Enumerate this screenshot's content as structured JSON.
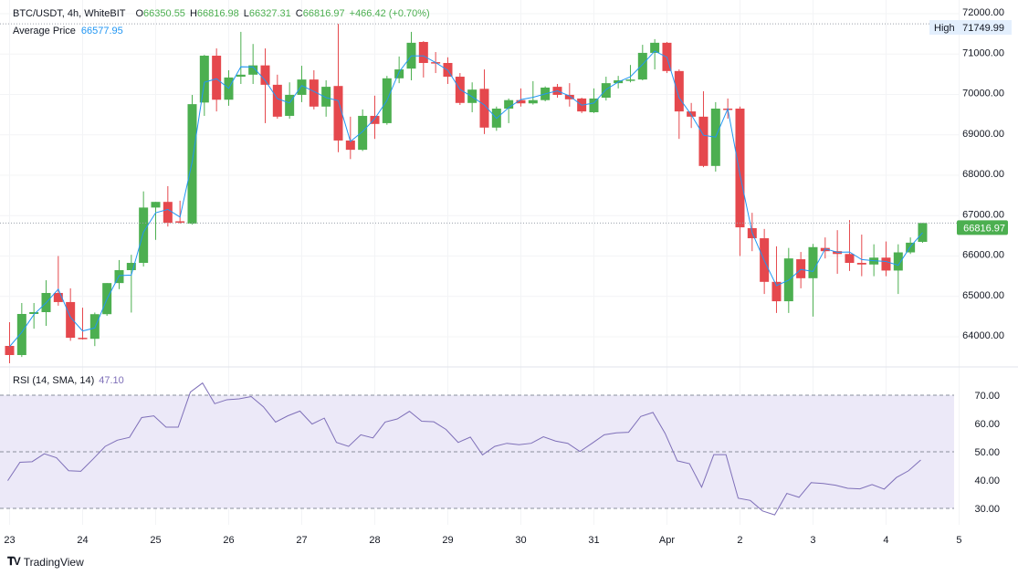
{
  "legend": {
    "symbol": "BTC/USDT, 4h, WhiteBIT",
    "o_key": "O",
    "o_val": "66350.55",
    "h_key": "H",
    "h_val": "66816.98",
    "l_key": "L",
    "l_val": "66327.31",
    "c_key": "C",
    "c_val": "66816.97",
    "change": "+466.42 (+0.70%)",
    "avg_label": "Average Price",
    "avg_val": "66577.95"
  },
  "rsi_legend": {
    "label": "RSI (14, SMA, 14)",
    "value": "47.10"
  },
  "high_marker": {
    "label": "High",
    "value": "71749.99"
  },
  "last_price_label": "66816.97",
  "branding": "TradingView",
  "colors": {
    "up": "#4caf50",
    "down": "#e5484d",
    "avg": "#2196f3",
    "rsi": "#7e6fb8",
    "rsi_band": "#ece9f8"
  },
  "chart_data": {
    "type": "candlestick",
    "title": "BTC/USDT, 4h, WhiteBIT",
    "price_ticks": [
      "72000.00",
      "71000.00",
      "70000.00",
      "69000.00",
      "68000.00",
      "67000.00",
      "66000.00",
      "65000.00",
      "64000.00"
    ],
    "price_tick_values": [
      72000,
      71000,
      70000,
      69000,
      68000,
      67000,
      66000,
      65000,
      64000
    ],
    "time_labels": [
      "23",
      "24",
      "25",
      "26",
      "27",
      "28",
      "29",
      "30",
      "31",
      "Apr",
      "2",
      "3",
      "4",
      "5"
    ],
    "candles_per_day": 6,
    "ohlc": [
      [
        63774,
        64362,
        63345,
        63548
      ],
      [
        63548,
        64836,
        63500,
        64565
      ],
      [
        64565,
        64836,
        64200,
        64610
      ],
      [
        64610,
        65400,
        64270,
        65085
      ],
      [
        65085,
        66000,
        64770,
        64860
      ],
      [
        64860,
        65200,
        63900,
        63975
      ],
      [
        63975,
        64720,
        63930,
        63950
      ],
      [
        63950,
        64600,
        63770,
        64560
      ],
      [
        64560,
        65330,
        64520,
        65330
      ],
      [
        65330,
        65900,
        65180,
        65650
      ],
      [
        65650,
        66030,
        64600,
        65830
      ],
      [
        65830,
        67600,
        65740,
        67200
      ],
      [
        67200,
        67340,
        66400,
        67340
      ],
      [
        67340,
        67730,
        66730,
        66820
      ],
      [
        66860,
        67370,
        66800,
        66830
      ],
      [
        66800,
        69990,
        66780,
        69760
      ],
      [
        69800,
        70980,
        69470,
        70960
      ],
      [
        70960,
        71140,
        69580,
        69870
      ],
      [
        69870,
        70600,
        69720,
        70420
      ],
      [
        70440,
        71550,
        70260,
        70490
      ],
      [
        70490,
        71250,
        70260,
        70720
      ],
      [
        70720,
        71140,
        69290,
        70240
      ],
      [
        70240,
        70490,
        69400,
        69450
      ],
      [
        69470,
        70300,
        69400,
        69990
      ],
      [
        69990,
        70710,
        69810,
        70370
      ],
      [
        70370,
        70600,
        69630,
        69700
      ],
      [
        69700,
        70350,
        69450,
        70190
      ],
      [
        70210,
        71749.99,
        68570,
        68860
      ],
      [
        68860,
        69450,
        68400,
        68630
      ],
      [
        68630,
        69630,
        68600,
        69470
      ],
      [
        69470,
        69970,
        68900,
        69270
      ],
      [
        69290,
        70460,
        69250,
        70400
      ],
      [
        70400,
        70940,
        70280,
        70620
      ],
      [
        70640,
        71550,
        70350,
        71280
      ],
      [
        71300,
        71320,
        70420,
        70780
      ],
      [
        70800,
        71050,
        70530,
        70780
      ],
      [
        70780,
        70920,
        70260,
        70440
      ],
      [
        70440,
        70530,
        69740,
        69790
      ],
      [
        69790,
        70300,
        69560,
        70120
      ],
      [
        70140,
        70620,
        69020,
        69180
      ],
      [
        69180,
        69700,
        69100,
        69650
      ],
      [
        69650,
        69900,
        69290,
        69860
      ],
      [
        69860,
        70150,
        69700,
        69780
      ],
      [
        69780,
        70330,
        69750,
        69860
      ],
      [
        69860,
        70200,
        69830,
        70170
      ],
      [
        70190,
        70260,
        69920,
        69990
      ],
      [
        69990,
        70280,
        69700,
        69880
      ],
      [
        69900,
        69920,
        69540,
        69580
      ],
      [
        69560,
        70150,
        69540,
        69900
      ],
      [
        69920,
        70440,
        69850,
        70280
      ],
      [
        70280,
        70460,
        70150,
        70350
      ],
      [
        70350,
        70730,
        70300,
        70370
      ],
      [
        70370,
        71230,
        70350,
        71030
      ],
      [
        71030,
        71370,
        70620,
        71280
      ],
      [
        71280,
        71300,
        70530,
        70580
      ],
      [
        70580,
        70620,
        68900,
        69580
      ],
      [
        69580,
        69790,
        69170,
        69450
      ],
      [
        69450,
        70080,
        68200,
        68230
      ],
      [
        68230,
        69810,
        68090,
        69650
      ],
      [
        69650,
        69900,
        69400,
        69630
      ],
      [
        69650,
        69700,
        66000,
        66710
      ],
      [
        66690,
        67070,
        66120,
        66440
      ],
      [
        66440,
        66670,
        65060,
        65360
      ],
      [
        65360,
        66240,
        64590,
        64880
      ],
      [
        64880,
        66200,
        64590,
        65940
      ],
      [
        65920,
        66100,
        65200,
        65450
      ],
      [
        65450,
        66300,
        64500,
        66220
      ],
      [
        66200,
        66460,
        65940,
        66120
      ],
      [
        66120,
        66640,
        65560,
        66050
      ],
      [
        66050,
        66890,
        65630,
        65830
      ],
      [
        65830,
        66530,
        65500,
        65790
      ],
      [
        65790,
        66290,
        65500,
        65960
      ],
      [
        65960,
        66360,
        65500,
        65640
      ],
      [
        65640,
        66290,
        65060,
        66090
      ],
      [
        66090,
        66460,
        66050,
        66330
      ],
      [
        66350.55,
        66816.98,
        66327.31,
        66816.97
      ]
    ],
    "rsi": {
      "ticks": [
        "70.00",
        "60.00",
        "50.00",
        "40.00",
        "30.00"
      ],
      "tick_values": [
        70,
        60,
        50,
        40,
        30
      ],
      "band": [
        30,
        70
      ],
      "values": [
        39.8,
        46.3,
        46.5,
        49.3,
        47.9,
        43.3,
        43.1,
        47.4,
        51.9,
        54.1,
        55.1,
        62.1,
        62.7,
        58.7,
        58.7,
        71.1,
        74.3,
        67.0,
        68.4,
        68.7,
        69.5,
        65.9,
        60.5,
        62.7,
        64.4,
        59.8,
        61.9,
        53.3,
        51.9,
        56.0,
        54.9,
        60.5,
        61.6,
        64.3,
        60.8,
        60.6,
        57.9,
        53.3,
        55.2,
        48.9,
        51.9,
        53.0,
        52.5,
        53.0,
        55.3,
        53.8,
        53.0,
        50.1,
        53.0,
        56.0,
        56.7,
        56.9,
        62.5,
        63.9,
        56.5,
        46.8,
        45.8,
        37.5,
        49.0,
        49.0,
        33.6,
        32.8,
        29.1,
        27.7,
        35.3,
        33.9,
        39.1,
        38.8,
        38.2,
        37.1,
        36.9,
        38.4,
        36.8,
        40.9,
        43.3,
        47.1
      ]
    }
  }
}
